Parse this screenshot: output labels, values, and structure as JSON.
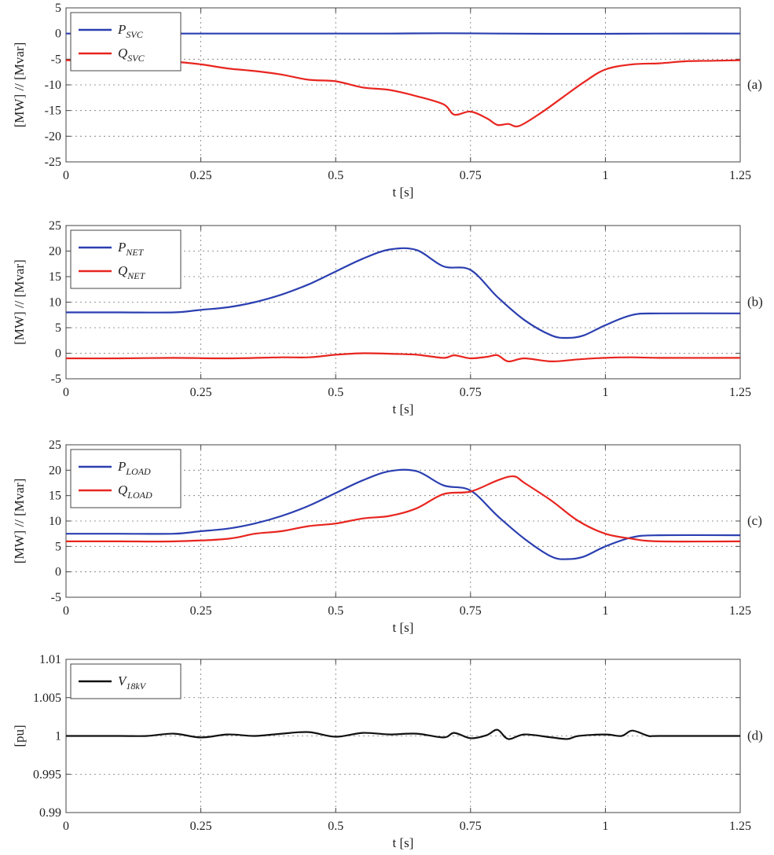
{
  "chart_data": [
    {
      "type": "line",
      "panel_label": "(a)",
      "xlabel": "t [s]",
      "ylabel": "[MW] // [Mvar]",
      "xlim": [
        0,
        1.25
      ],
      "ylim": [
        -25,
        5
      ],
      "xticks": [
        "0",
        "0.25",
        "0.5",
        "0.75",
        "1",
        "1.25"
      ],
      "yticks": [
        "-25",
        "-20",
        "-15",
        "-10",
        "-5",
        "0",
        "5"
      ],
      "xtick_values": [
        0,
        0.25,
        0.5,
        0.75,
        1,
        1.25
      ],
      "ytick_values": [
        -25,
        -20,
        -15,
        -10,
        -5,
        0,
        5
      ],
      "grid": "dotted",
      "legend_position": "top-left",
      "series": [
        {
          "name_main": "P",
          "name_sub": "SVC",
          "color": "#2b3fb0",
          "x": [
            0,
            0.1,
            0.2,
            0.3,
            0.4,
            0.5,
            0.6,
            0.7,
            0.8,
            0.9,
            1.0,
            1.1,
            1.25
          ],
          "y": [
            0,
            0,
            0,
            0,
            0,
            0,
            0,
            0.05,
            0,
            -0.05,
            -0.05,
            0,
            0
          ]
        },
        {
          "name_main": "Q",
          "name_sub": "SVC",
          "color": "#e8251f",
          "x": [
            0,
            0.1,
            0.2,
            0.25,
            0.3,
            0.35,
            0.4,
            0.45,
            0.5,
            0.55,
            0.6,
            0.65,
            0.7,
            0.72,
            0.75,
            0.78,
            0.8,
            0.82,
            0.84,
            0.88,
            0.92,
            0.96,
            1.0,
            1.05,
            1.1,
            1.15,
            1.2,
            1.25
          ],
          "y": [
            -5.2,
            -5.3,
            -5.5,
            -6,
            -6.8,
            -7.3,
            -8,
            -9,
            -9.3,
            -10.5,
            -11,
            -12.2,
            -13.8,
            -15.8,
            -15.2,
            -16.5,
            -17.8,
            -17.6,
            -18,
            -15.5,
            -12.5,
            -9.5,
            -7,
            -6,
            -5.8,
            -5.4,
            -5.3,
            -5.2
          ]
        }
      ]
    },
    {
      "type": "line",
      "panel_label": "(b)",
      "xlabel": "t [s]",
      "ylabel": "[MW] // [Mvar]",
      "xlim": [
        0,
        1.25
      ],
      "ylim": [
        -5,
        25
      ],
      "xticks": [
        "0",
        "0.25",
        "0.5",
        "0.75",
        "1",
        "1.25"
      ],
      "yticks": [
        "-5",
        "0",
        "5",
        "10",
        "15",
        "20",
        "25"
      ],
      "xtick_values": [
        0,
        0.25,
        0.5,
        0.75,
        1,
        1.25
      ],
      "ytick_values": [
        -5,
        0,
        5,
        10,
        15,
        20,
        25
      ],
      "grid": "dotted",
      "legend_position": "top-left",
      "series": [
        {
          "name_main": "P",
          "name_sub": "NET",
          "color": "#2b3fb0",
          "x": [
            0,
            0.1,
            0.2,
            0.25,
            0.3,
            0.35,
            0.4,
            0.45,
            0.5,
            0.55,
            0.6,
            0.65,
            0.7,
            0.75,
            0.8,
            0.85,
            0.9,
            0.93,
            0.96,
            1.0,
            1.05,
            1.1,
            1.25
          ],
          "y": [
            8,
            8,
            8,
            8.5,
            9,
            10,
            11.5,
            13.5,
            16,
            18.5,
            20.3,
            20.2,
            17,
            16.3,
            11,
            6.5,
            3.5,
            3,
            3.5,
            5.5,
            7.5,
            7.8,
            7.8
          ]
        },
        {
          "name_main": "Q",
          "name_sub": "NET",
          "color": "#e8251f",
          "x": [
            0,
            0.1,
            0.2,
            0.3,
            0.4,
            0.45,
            0.5,
            0.55,
            0.6,
            0.65,
            0.7,
            0.72,
            0.75,
            0.78,
            0.8,
            0.82,
            0.85,
            0.9,
            0.95,
            1.0,
            1.05,
            1.1,
            1.25
          ],
          "y": [
            -1,
            -1,
            -0.9,
            -1,
            -0.8,
            -0.8,
            -0.3,
            0,
            -0.1,
            -0.3,
            -0.9,
            -0.4,
            -1,
            -0.7,
            -0.4,
            -1.6,
            -1,
            -1.6,
            -1.2,
            -0.9,
            -0.8,
            -0.9,
            -0.9
          ]
        }
      ]
    },
    {
      "type": "line",
      "panel_label": "(c)",
      "xlabel": "t [s]",
      "ylabel": "[MW] // [Mvar]",
      "xlim": [
        0,
        1.25
      ],
      "ylim": [
        -5,
        25
      ],
      "xticks": [
        "0",
        "0.25",
        "0.5",
        "0.75",
        "1",
        "1.25"
      ],
      "yticks": [
        "-5",
        "0",
        "5",
        "10",
        "15",
        "20",
        "25"
      ],
      "xtick_values": [
        0,
        0.25,
        0.5,
        0.75,
        1,
        1.25
      ],
      "ytick_values": [
        -5,
        0,
        5,
        10,
        15,
        20,
        25
      ],
      "grid": "dotted",
      "legend_position": "top-left",
      "series": [
        {
          "name_main": "P",
          "name_sub": "LOAD",
          "color": "#2b3fb0",
          "x": [
            0,
            0.1,
            0.2,
            0.25,
            0.3,
            0.35,
            0.4,
            0.45,
            0.5,
            0.55,
            0.6,
            0.65,
            0.7,
            0.75,
            0.8,
            0.85,
            0.9,
            0.93,
            0.96,
            1.0,
            1.05,
            1.1,
            1.25
          ],
          "y": [
            7.5,
            7.5,
            7.5,
            8,
            8.5,
            9.5,
            11,
            13,
            15.5,
            18,
            19.8,
            19.8,
            17,
            16,
            11,
            6.5,
            3,
            2.5,
            3,
            5,
            6.8,
            7.2,
            7.2
          ]
        },
        {
          "name_main": "Q",
          "name_sub": "LOAD",
          "color": "#e8251f",
          "x": [
            0,
            0.1,
            0.2,
            0.3,
            0.35,
            0.4,
            0.45,
            0.5,
            0.55,
            0.6,
            0.65,
            0.7,
            0.75,
            0.8,
            0.83,
            0.85,
            0.9,
            0.95,
            1.0,
            1.05,
            1.1,
            1.25
          ],
          "y": [
            6,
            6,
            6,
            6.5,
            7.5,
            8,
            9,
            9.5,
            10.5,
            11,
            12.5,
            15.3,
            15.8,
            18,
            18.8,
            17.5,
            14,
            10,
            7.5,
            6.5,
            6,
            6
          ]
        }
      ]
    },
    {
      "type": "line",
      "panel_label": "(d)",
      "xlabel": "t [s]",
      "ylabel": "[pu]",
      "xlim": [
        0,
        1.25
      ],
      "ylim": [
        0.99,
        1.01
      ],
      "xticks": [
        "0",
        "0.25",
        "0.5",
        "0.75",
        "1",
        "1.25"
      ],
      "yticks": [
        "0.99",
        "0.995",
        "1",
        "1.005",
        "1.01"
      ],
      "xtick_values": [
        0,
        0.25,
        0.5,
        0.75,
        1,
        1.25
      ],
      "ytick_values": [
        0.99,
        0.995,
        1,
        1.005,
        1.01
      ],
      "grid": "dotted",
      "legend_position": "top-left",
      "series": [
        {
          "name_main": "V",
          "name_sub": "18kV",
          "color": "#111111",
          "x": [
            0,
            0.1,
            0.15,
            0.2,
            0.25,
            0.3,
            0.35,
            0.4,
            0.45,
            0.5,
            0.55,
            0.6,
            0.65,
            0.7,
            0.72,
            0.75,
            0.78,
            0.8,
            0.82,
            0.85,
            0.9,
            0.93,
            0.95,
            1.0,
            1.03,
            1.05,
            1.08,
            1.1,
            1.25
          ],
          "y": [
            1.0,
            1.0,
            1.0,
            1.0003,
            0.9998,
            1.0002,
            1.0,
            1.0003,
            1.0005,
            0.9999,
            1.0004,
            1.0002,
            1.0003,
            0.9998,
            1.0004,
            0.9997,
            1.0001,
            1.0008,
            0.9996,
            1.0002,
            0.9998,
            0.9996,
            1.0,
            1.0002,
            1.0,
            1.0007,
            1.0,
            1.0,
            1.0
          ]
        }
      ]
    }
  ]
}
